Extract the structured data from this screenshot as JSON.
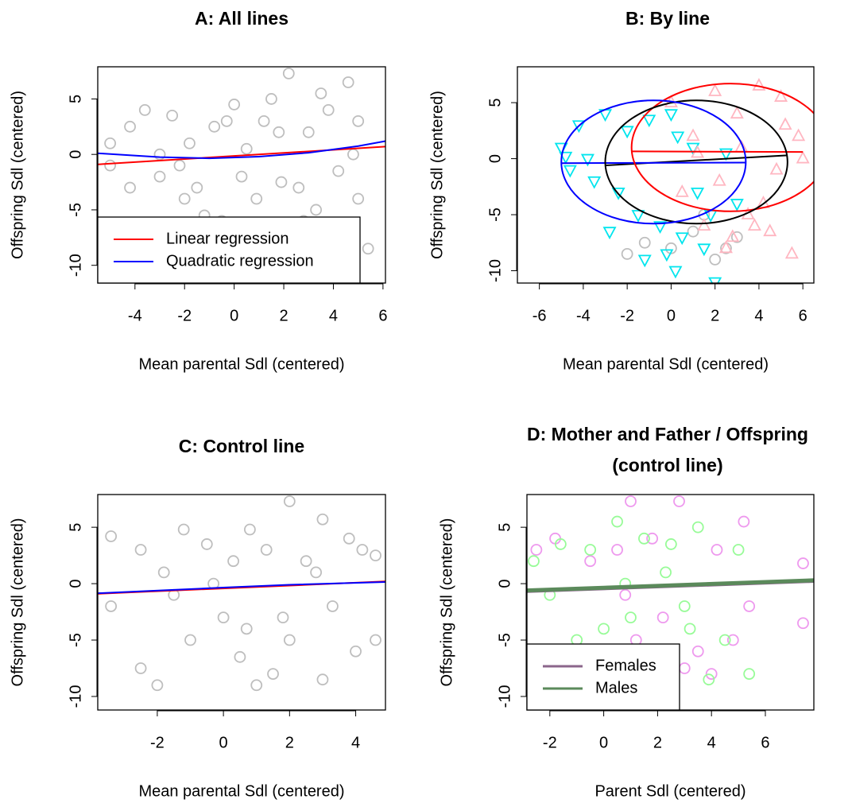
{
  "chart_data": [
    {
      "type": "scatter",
      "title": "A: All lines",
      "xlabel": "Mean parental Sdl (centered)",
      "ylabel": "Offspring Sdl (centered)",
      "xlim": [
        -5.5,
        6.1
      ],
      "ylim": [
        -11.6,
        7.9
      ],
      "xticks": [
        -4,
        -2,
        0,
        2,
        4,
        6
      ],
      "yticks": [
        -10,
        -5,
        0,
        5
      ],
      "legend": "bottomleft",
      "series": [
        {
          "color": "#bebebe",
          "marker": "circle",
          "x": [
            -5,
            -5,
            -4.2,
            -4.2,
            -3.6,
            -3,
            -2.5,
            -2,
            -1.8,
            -1.2,
            -0.8,
            -0.5,
            0,
            0.3,
            0.8,
            1.2,
            1.5,
            2,
            2.2,
            2.6,
            3,
            3.3,
            3.8,
            4.2,
            4.6,
            5,
            5,
            5.4,
            -3,
            -1.5,
            0.5,
            1.8,
            2.8,
            4,
            -2.2,
            0.9,
            3.5,
            1.9,
            -0.3,
            4.8
          ],
          "values": [
            1,
            -1,
            2.5,
            -3,
            4,
            -2,
            3.5,
            -4,
            1,
            -5.5,
            2.5,
            -6,
            4.5,
            -2,
            -7,
            3,
            5,
            -8,
            7.3,
            -3,
            2,
            -5,
            4,
            -1.5,
            6.5,
            -4,
            3,
            -8.5,
            0,
            -3,
            0.5,
            2,
            -6,
            -9,
            -1,
            -4,
            5.5,
            -2.5,
            3,
            0
          ]
        },
        {
          "name": "Linear regression",
          "color": "#ff0000",
          "marker": "line",
          "x": [
            -5.5,
            6.1
          ],
          "values": [
            -0.9,
            0.7
          ]
        },
        {
          "name": "Quadratic regression",
          "color": "#0000ff",
          "marker": "line",
          "x": [
            -5.5,
            -3,
            -1,
            1,
            3,
            5,
            6.1
          ],
          "values": [
            0.1,
            -0.25,
            -0.35,
            -0.2,
            0.15,
            0.75,
            1.2
          ]
        }
      ]
    },
    {
      "type": "scatter",
      "title": "B: By line",
      "xlabel": "Mean parental Sdl (centered)",
      "ylabel": "Offspring Sdl (centered)",
      "xlim": [
        -7.0,
        6.5
      ],
      "ylim": [
        -11.1,
        8.2
      ],
      "xticks": [
        -6,
        -4,
        -2,
        0,
        2,
        4,
        6
      ],
      "yticks": [
        -10,
        -5,
        0,
        5
      ],
      "series": [
        {
          "color": "#bebebe",
          "marker": "circle",
          "x": [
            -2,
            0,
            1,
            2,
            3,
            1.5,
            -1.2,
            2.5
          ],
          "values": [
            -8.5,
            -8,
            -6.5,
            -9,
            -7,
            -5,
            -7.5,
            -8
          ]
        },
        {
          "color": "#00e5ee",
          "marker": "triangle-down",
          "x": [
            -5,
            -4.6,
            -4.2,
            -3.5,
            -3,
            -2.4,
            -2,
            -1.5,
            -1,
            -0.5,
            0,
            0.2,
            0.5,
            1,
            1.5,
            2,
            2.5,
            3,
            -3.8,
            -2.8,
            -1.2,
            0.3,
            1.2,
            -0.2,
            -4.8,
            1.8
          ],
          "values": [
            1,
            -1,
            3,
            -2,
            4,
            -3,
            2.5,
            -5,
            3.5,
            -6,
            4,
            -10,
            -7,
            1,
            -8,
            -11,
            0.5,
            -4,
            0,
            -6.5,
            -9,
            2,
            -3,
            -8.5,
            0.2,
            -5
          ]
        },
        {
          "color": "#ffb6c1",
          "marker": "triangle-up",
          "x": [
            0,
            0.5,
            1,
            1.5,
            2,
            2.5,
            3,
            3.5,
            4,
            4.5,
            5,
            5.5,
            6,
            2.2,
            3.2,
            4.2,
            5.2,
            1.2,
            2.8,
            4.8,
            3.8,
            5.8
          ],
          "values": [
            5,
            -3,
            2,
            -6,
            6,
            -8,
            4,
            -5,
            6.5,
            -6.5,
            5.5,
            -8.5,
            0,
            -2,
            1,
            -4,
            3,
            0.5,
            -7,
            -1,
            -6,
            2
          ]
        },
        {
          "color": "#ff0000",
          "marker": "line",
          "x": [
            -1.8,
            6.0
          ],
          "values": [
            0.65,
            0.6
          ]
        },
        {
          "color": "#000000",
          "marker": "line",
          "x": [
            -3.0,
            5.3
          ],
          "values": [
            -0.6,
            0.3
          ]
        },
        {
          "color": "#0000ff",
          "marker": "line",
          "x": [
            -5.0,
            3.4
          ],
          "values": [
            -0.4,
            -0.35
          ]
        },
        {
          "color": "#ff0000",
          "marker": "ellipse",
          "cx": 2.7,
          "cy": 1.0,
          "rx": 4.5,
          "ry": 5.7
        },
        {
          "color": "#000000",
          "marker": "ellipse",
          "cx": 1.15,
          "cy": -0.3,
          "rx": 4.15,
          "ry": 5.5
        },
        {
          "color": "#0000ff",
          "marker": "ellipse",
          "cx": -0.8,
          "cy": -0.3,
          "rx": 4.2,
          "ry": 5.5
        }
      ]
    },
    {
      "type": "scatter",
      "title": "C: Control line",
      "xlabel": "Mean parental Sdl (centered)",
      "ylabel": "Offspring Sdl (centered)",
      "xlim": [
        -3.8,
        4.9
      ],
      "ylim": [
        -11.2,
        7.9
      ],
      "xticks": [
        -2,
        0,
        2,
        4
      ],
      "yticks": [
        -10,
        -5,
        0,
        5
      ],
      "series": [
        {
          "color": "#bebebe",
          "marker": "circle",
          "x": [
            -3.4,
            -3.4,
            -2.5,
            -2.5,
            -2,
            -1.8,
            -1.2,
            -1,
            -0.5,
            0,
            0.3,
            0.5,
            0.8,
            1,
            1.3,
            1.5,
            2,
            2,
            2.5,
            3,
            3,
            3.3,
            3.8,
            4,
            4.2,
            4.6,
            4.6,
            -0.3,
            1.8,
            2.8,
            -1.5,
            0.7
          ],
          "values": [
            4.2,
            -2,
            3,
            -7.5,
            -9,
            1,
            4.8,
            -5,
            3.5,
            -3,
            2,
            -6.5,
            4.8,
            -9,
            3,
            -8,
            7.3,
            -5,
            2,
            -8.5,
            5.7,
            -2,
            4,
            -6,
            3,
            2.5,
            -5,
            0,
            -3,
            1,
            -1,
            -4
          ]
        },
        {
          "color": "#ff0000",
          "marker": "line",
          "x": [
            -3.8,
            4.9
          ],
          "values": [
            -0.9,
            0.2
          ]
        },
        {
          "color": "#0000ff",
          "marker": "line",
          "x": [
            -3.8,
            -1.5,
            0,
            2,
            4.9
          ],
          "values": [
            -0.85,
            -0.55,
            -0.35,
            -0.1,
            0.15
          ]
        }
      ]
    },
    {
      "type": "scatter",
      "title": [
        "D: Mother and Father / Offspring",
        "(control line)"
      ],
      "xlabel": "Parent Sdl (centered)",
      "ylabel": "Offspring Sdl (centered)",
      "xlim": [
        -2.85,
        7.8
      ],
      "ylim": [
        -11.2,
        7.9
      ],
      "xticks": [
        -2,
        0,
        2,
        4,
        6
      ],
      "yticks": [
        -10,
        -5,
        0,
        5
      ],
      "legend": "bottomleft",
      "series": [
        {
          "color": "#ee99ee",
          "marker": "circle",
          "x": [
            -2.5,
            -2.5,
            -1.8,
            -1.2,
            -0.5,
            0,
            0.5,
            1,
            1.2,
            1.8,
            2.2,
            2.8,
            3.5,
            4,
            4.2,
            4.8,
            5.2,
            5.4,
            7.4,
            7.4,
            3,
            0.8
          ],
          "values": [
            3,
            -8,
            4,
            -7,
            2,
            -6,
            3,
            7.3,
            -5,
            4,
            -3,
            7.3,
            -6,
            -8,
            3,
            -5,
            5.5,
            -2,
            1.8,
            -3.5,
            -7.5,
            -1
          ]
        },
        {
          "color": "#98fb98",
          "marker": "circle",
          "x": [
            -2.6,
            -2.2,
            -1.6,
            -1,
            -0.5,
            0,
            0.5,
            1,
            1.5,
            2,
            2.5,
            3,
            3.5,
            3.9,
            4.5,
            5,
            5.4,
            -2,
            0.8,
            2.3,
            3.2,
            1.2
          ],
          "values": [
            2,
            -6,
            3.5,
            -5,
            3,
            -4,
            5.5,
            -3,
            4,
            -6,
            3.5,
            -2,
            5,
            -8.5,
            -5,
            3,
            -8,
            -1,
            0,
            1,
            -4,
            -7
          ]
        },
        {
          "name": "Females",
          "color": "#8b668b",
          "marker": "thick-line",
          "x": [
            -2.85,
            7.8
          ],
          "values": [
            -0.65,
            0.25
          ]
        },
        {
          "name": "Males",
          "color": "#5b8a5b",
          "marker": "thick-line",
          "x": [
            -2.85,
            7.8
          ],
          "values": [
            -0.6,
            0.3
          ]
        }
      ]
    }
  ]
}
